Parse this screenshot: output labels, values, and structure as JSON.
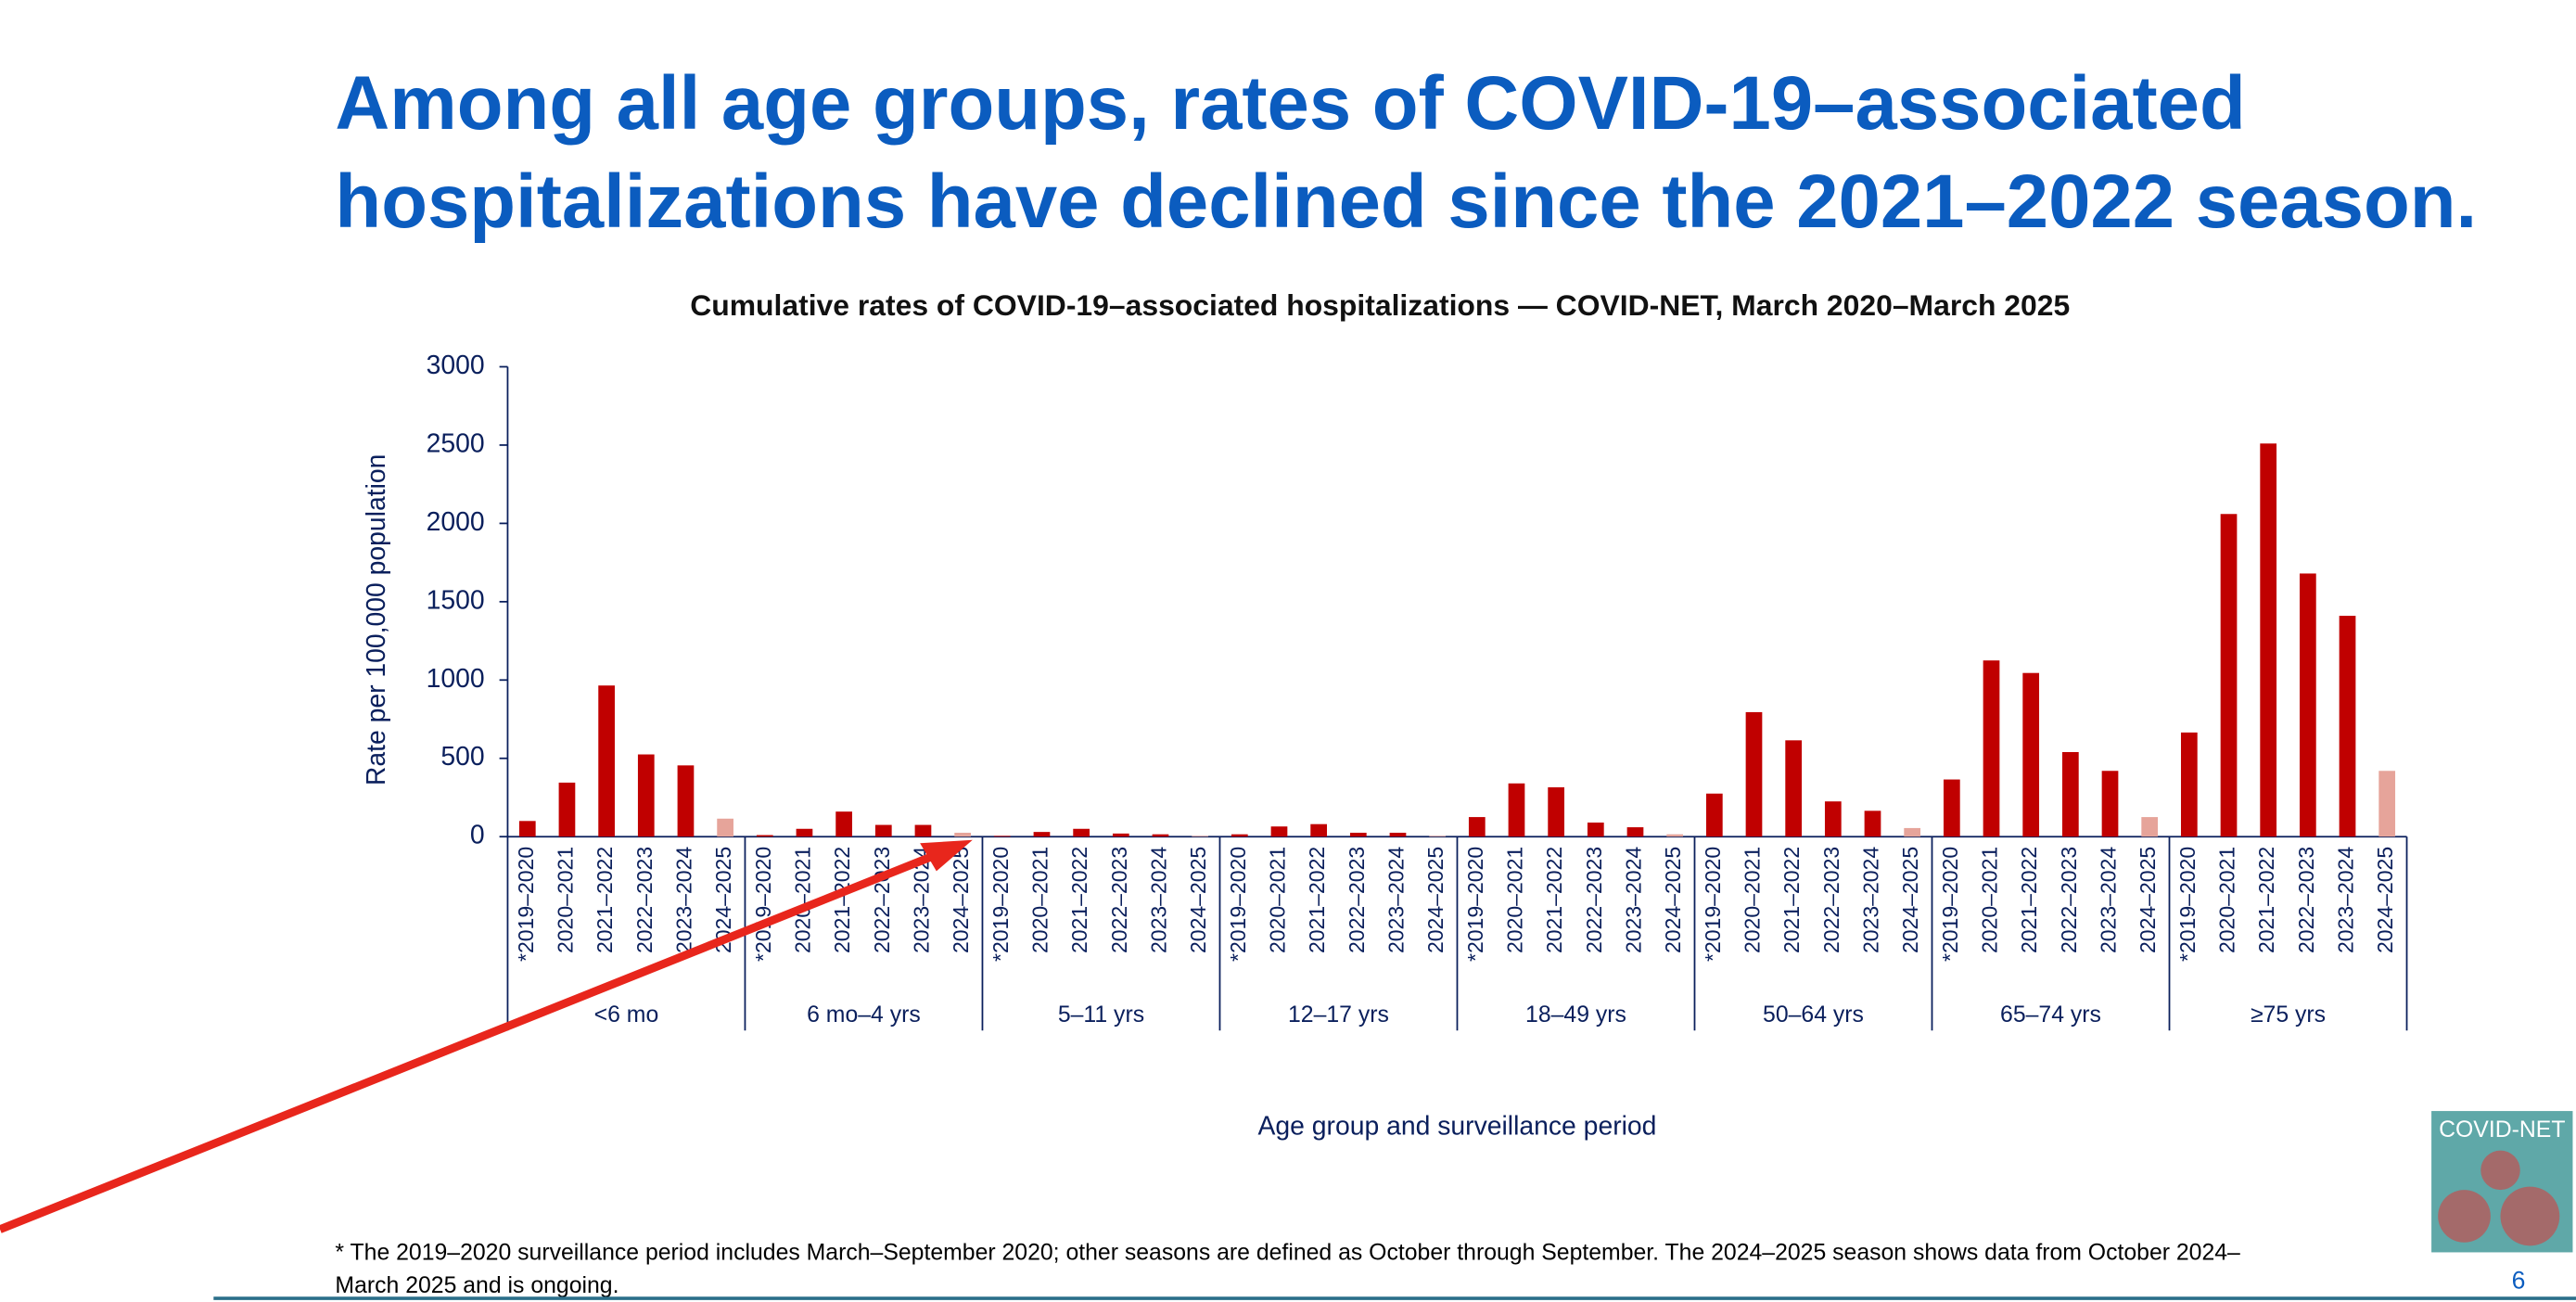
{
  "slide": {
    "title_lines": [
      "Among all age groups, rates of COVID-19–associated",
      "hospitalizations have declined since the 2021–2022 season."
    ],
    "footnote_lines": [
      "* The 2019–2020 surveillance period includes March–September 2020; other seasons are defined as October through September. The 2024–2025 season shows data from October 2024–",
      "March 2025 and is ongoing."
    ],
    "logo": "COVID-NET",
    "page_number": "6"
  },
  "chart_data": {
    "type": "bar",
    "title": "Cumulative rates of COVID-19–associated hospitalizations — COVID-NET, March 2020–March 2025",
    "xlabel": "Age group and surveillance period",
    "ylabel": "Rate per 100,000 population",
    "categories": [
      "<6 mo",
      "6 mo–4 yrs",
      "5–11 yrs",
      "12–17 yrs",
      "18–49 yrs",
      "50–64 yrs",
      "65–74 yrs",
      "≥75 yrs"
    ],
    "seasons": [
      "*2019–2020",
      "2020–2021",
      "2021–2022",
      "2022–2023",
      "2023–2024",
      "2024–2025"
    ],
    "season_colors": [
      "#c00000",
      "#c00000",
      "#c00000",
      "#c00000",
      "#c00000",
      "#e6a49a"
    ],
    "values": [
      [
        100,
        345,
        965,
        525,
        455,
        115
      ],
      [
        10,
        50,
        160,
        75,
        75,
        25
      ],
      [
        5,
        30,
        50,
        20,
        15,
        5
      ],
      [
        15,
        65,
        80,
        25,
        25,
        5
      ],
      [
        125,
        340,
        315,
        90,
        60,
        15
      ],
      [
        275,
        795,
        615,
        225,
        165,
        55
      ],
      [
        365,
        1125,
        1045,
        540,
        420,
        125
      ],
      [
        665,
        2060,
        2510,
        1680,
        1410,
        420
      ]
    ],
    "ylim": [
      0,
      3000
    ],
    "yticks": [
      0,
      500,
      1000,
      1500,
      2000,
      2500,
      3000
    ]
  }
}
